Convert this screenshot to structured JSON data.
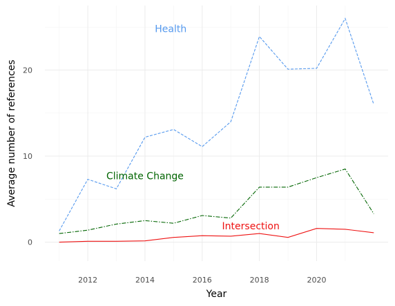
{
  "chart_data": {
    "type": "line",
    "title": "",
    "xlabel": "Year",
    "ylabel": "Average number of references",
    "xlim": [
      2010.5,
      2022.5
    ],
    "ylim": [
      -2.2,
      27.5
    ],
    "x_ticks": [
      2012,
      2014,
      2016,
      2018,
      2020
    ],
    "y_ticks": [
      0,
      10,
      20
    ],
    "grid": true,
    "legend": "none (direct labels on series)",
    "x": [
      2011,
      2012,
      2013,
      2014,
      2015,
      2016,
      2017,
      2018,
      2019,
      2020,
      2021,
      2022
    ],
    "series": [
      {
        "name": "Health",
        "color": "#5599ee",
        "dash": "dashed",
        "values": [
          1.3,
          7.3,
          6.2,
          12.2,
          13.1,
          11.1,
          14.0,
          23.9,
          20.1,
          20.2,
          26.0,
          16.0
        ],
        "label_x": 2014.9,
        "label_y": 24.8
      },
      {
        "name": "Climate Change",
        "color": "#006400",
        "dash": "dashdot",
        "values": [
          1.0,
          1.4,
          2.1,
          2.5,
          2.2,
          3.1,
          2.8,
          6.4,
          6.4,
          7.5,
          8.5,
          3.3
        ],
        "label_x": 2014.0,
        "label_y": 7.7
      },
      {
        "name": "Intersection",
        "color": "#ee1111",
        "dash": "solid",
        "values": [
          0.0,
          0.1,
          0.1,
          0.15,
          0.55,
          0.75,
          0.7,
          1.0,
          0.55,
          1.6,
          1.5,
          1.1
        ],
        "label_x": 2017.7,
        "label_y": 1.9
      }
    ]
  }
}
